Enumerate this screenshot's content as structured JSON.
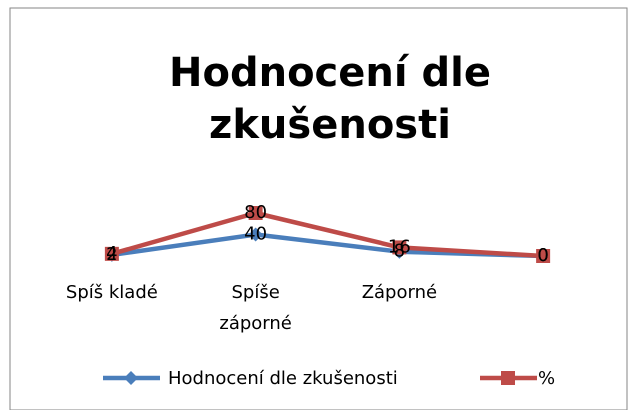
{
  "chart_data": {
    "type": "line",
    "title": "Hodnocení dle zkušenosti",
    "categories": [
      "Spíš kladé",
      "Spíše záporné",
      "Záporné",
      null
    ],
    "series": [
      {
        "name": "Hodnocení dle zkušenosti",
        "color": "#4a7ebb",
        "values": [
          2,
          40,
          8,
          0
        ]
      },
      {
        "name": "%",
        "color": "#be4b48",
        "values": [
          4,
          80,
          16,
          0
        ]
      }
    ],
    "legend": "bottom"
  }
}
